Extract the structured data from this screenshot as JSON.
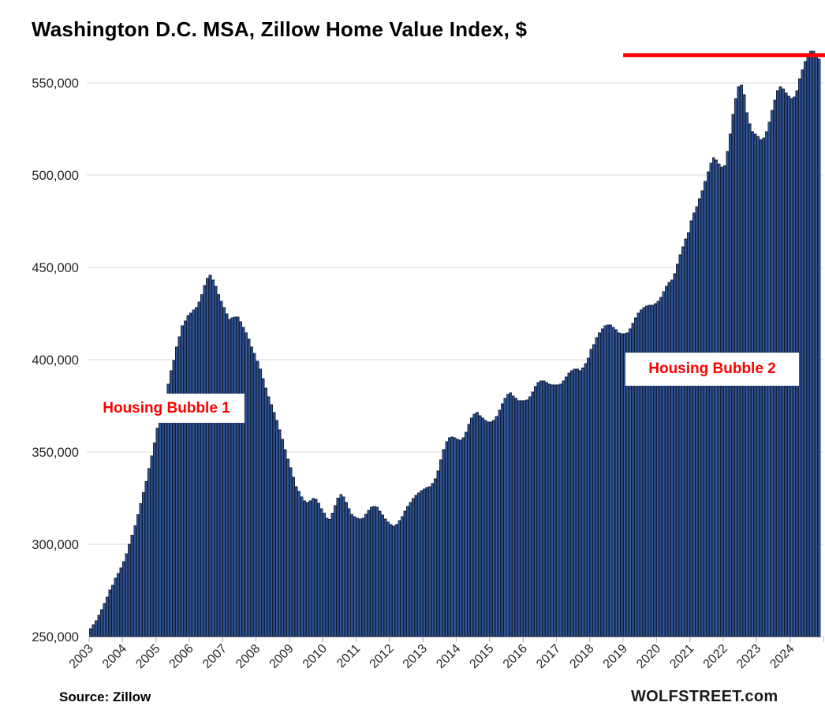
{
  "title": "Washington D.C. MSA, Zillow Home Value Index, $",
  "footer": {
    "source_label": "Source: Zillow",
    "branding": "WOLFSTREET.com"
  },
  "annotations": {
    "bubble1": "Housing Bubble 1",
    "bubble2": "Housing Bubble 2"
  },
  "colors": {
    "bar_fill": "#2F5597",
    "bar_stroke": "#141F38",
    "gridline": "#D9D9D9",
    "tick": "#BFBFBF",
    "axis_text": "#262626",
    "record_line": "#FF0000",
    "annotation_text": "#FF0000"
  },
  "chart_data": {
    "type": "bar",
    "title": "Washington D.C. MSA, Zillow Home Value Index, $",
    "unit": "USD",
    "frequency": "monthly",
    "x_start": "2003-01",
    "x_end": "2024-11",
    "x_tick_labels": [
      "2003",
      "2004",
      "2005",
      "2006",
      "2007",
      "2008",
      "2009",
      "2010",
      "2011",
      "2012",
      "2013",
      "2014",
      "2015",
      "2016",
      "2017",
      "2018",
      "2019",
      "2020",
      "2021",
      "2022",
      "2023",
      "2024"
    ],
    "ylabel": "",
    "xlabel": "",
    "ylim": [
      250000,
      570000
    ],
    "y_ticks": [
      250000,
      300000,
      350000,
      400000,
      450000,
      500000,
      550000
    ],
    "grid": true,
    "legend": false,
    "red_line": {
      "value": 565000,
      "from_year_label": "2019",
      "to_end": true
    },
    "series": [
      {
        "name": "Zillow Home Value Index",
        "monthly_values": [
          254300,
          256400,
          258500,
          261500,
          264500,
          268000,
          271400,
          275200,
          277800,
          281600,
          284200,
          287200,
          290600,
          295000,
          300000,
          305000,
          310000,
          316000,
          322000,
          328000,
          334000,
          341000,
          348000,
          355000,
          362800,
          368400,
          373900,
          380300,
          386800,
          394000,
          399600,
          406800,
          412400,
          418400,
          420900,
          423900,
          425200,
          426900,
          428200,
          431200,
          435400,
          440200,
          444000,
          445700,
          443200,
          439700,
          435400,
          431600,
          428200,
          424800,
          421800,
          422600,
          423100,
          423100,
          420500,
          417500,
          414500,
          411100,
          406800,
          403400,
          399100,
          394900,
          389700,
          384600,
          379900,
          375600,
          371400,
          367100,
          362000,
          356800,
          351300,
          346200,
          341500,
          336300,
          331200,
          328600,
          325600,
          323500,
          322600,
          323500,
          324800,
          324400,
          322200,
          319200,
          317000,
          314100,
          313500,
          317000,
          321000,
          325000,
          326900,
          325600,
          322600,
          319200,
          316200,
          315000,
          314100,
          313700,
          314100,
          316200,
          318400,
          320100,
          320500,
          320100,
          317900,
          315800,
          313700,
          312000,
          310700,
          309800,
          310700,
          312800,
          315000,
          317900,
          320500,
          322600,
          324800,
          326500,
          327800,
          329100,
          329900,
          330800,
          331200,
          332900,
          335500,
          339700,
          345700,
          351300,
          355600,
          357700,
          358100,
          357700,
          356800,
          356400,
          357700,
          360700,
          365000,
          368400,
          370500,
          371400,
          369700,
          368400,
          367100,
          366200,
          366200,
          367100,
          369200,
          372600,
          376100,
          379100,
          381200,
          382100,
          380300,
          379100,
          377800,
          377800,
          377800,
          378200,
          379900,
          382500,
          385500,
          387600,
          388400,
          388400,
          387600,
          386800,
          386300,
          386300,
          386300,
          386800,
          388400,
          390600,
          392700,
          394000,
          394900,
          394900,
          394000,
          395500,
          398000,
          401000,
          405600,
          408100,
          412000,
          414500,
          416700,
          418400,
          418800,
          418800,
          417500,
          416200,
          414500,
          414100,
          414100,
          414500,
          416700,
          419700,
          422600,
          425200,
          426900,
          428200,
          429100,
          429500,
          429500,
          430300,
          431600,
          433800,
          436800,
          439700,
          441900,
          443200,
          446600,
          451700,
          456800,
          461100,
          465400,
          468900,
          475200,
          479500,
          483000,
          487200,
          491500,
          496600,
          501700,
          506400,
          509400,
          508100,
          506000,
          504300,
          505100,
          512800,
          522200,
          532900,
          541500,
          547900,
          548700,
          543600,
          533800,
          527800,
          523500,
          522200,
          520900,
          519200,
          520100,
          523500,
          528600,
          535000,
          540600,
          545700,
          547900,
          546600,
          544400,
          542700,
          541400,
          542300,
          545700,
          552100,
          557200,
          561500,
          564100,
          567100,
          567100,
          564100,
          562800
        ]
      }
    ]
  }
}
